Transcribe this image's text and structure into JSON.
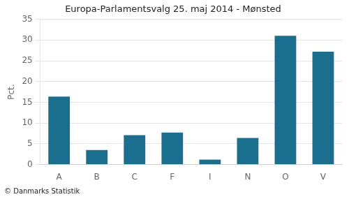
{
  "chart_data": {
    "type": "bar",
    "title": "Europa-Parlamentsvalg 25. maj 2014 - Mønsted",
    "ylabel": "Pct.",
    "footer": "© Danmarks Statistik",
    "categories": [
      "A",
      "B",
      "C",
      "F",
      "I",
      "N",
      "O",
      "V"
    ],
    "values": [
      16.4,
      3.5,
      7.1,
      7.7,
      1.2,
      6.4,
      31.0,
      27.2
    ],
    "color": "#1a6e8e",
    "ylim": [
      0,
      35
    ],
    "yticks": [
      0,
      5,
      10,
      15,
      20,
      25,
      30,
      35
    ],
    "grid": true
  }
}
